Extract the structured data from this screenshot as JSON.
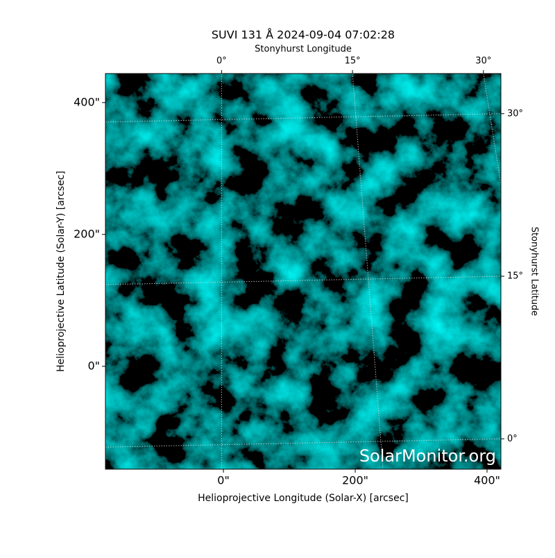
{
  "chart_data": {
    "type": "image",
    "title": "SUVI 131 Å 2024-09-04 07:02:28",
    "xlabel": "Helioprojective Longitude (Solar-X) [arcsec]",
    "ylabel": "Helioprojective Latitude (Solar-Y) [arcsec]",
    "x2label": "Stonyhurst Longitude",
    "y2label": "Stonyhurst Latitude",
    "watermark": "SolarMonitor.org",
    "xlim": [
      -179,
      421
    ],
    "ylim": [
      -156,
      444
    ],
    "xticks": [
      {
        "value": 0,
        "label": "0\""
      },
      {
        "value": 200,
        "label": "200\""
      },
      {
        "value": 400,
        "label": "400\""
      }
    ],
    "yticks": [
      {
        "value": 0,
        "label": "0\""
      },
      {
        "value": 200,
        "label": "200\""
      },
      {
        "value": 400,
        "label": "400\""
      }
    ],
    "x2lim": [
      -13.3,
      32
    ],
    "x2ticks": [
      {
        "value": 0,
        "label": "0°"
      },
      {
        "value": 15,
        "label": "15°"
      },
      {
        "value": 30,
        "label": "30°"
      }
    ],
    "y2lim": [
      -2.8,
      33.7
    ],
    "y2ticks": [
      {
        "value": 0,
        "label": "0°"
      },
      {
        "value": 15,
        "label": "15°"
      },
      {
        "value": 30,
        "label": "30°"
      }
    ],
    "grid": true
  }
}
